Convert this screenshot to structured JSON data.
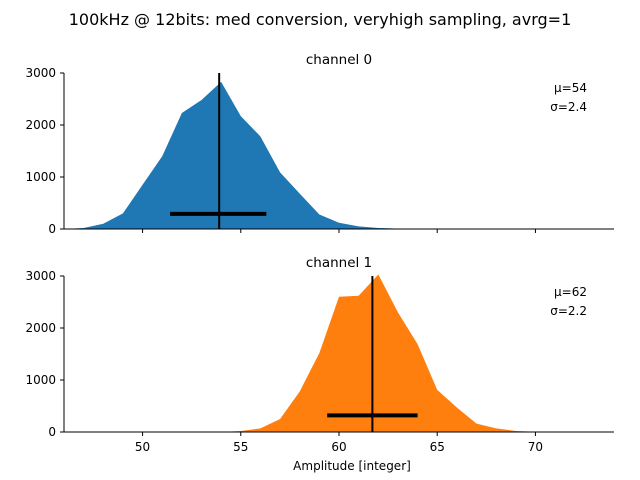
{
  "suptitle": "100kHz @ 12bits: med conversion, veryhigh sampling, avrg=1",
  "xlabel": "Amplitude [integer]",
  "chart_data": [
    {
      "type": "area",
      "title": "channel 0",
      "color": "#1f77b4",
      "x": [
        46,
        47,
        48,
        49,
        50,
        51,
        52,
        53,
        54,
        55,
        56,
        57,
        58,
        59,
        60,
        61,
        62,
        63,
        64,
        65,
        66,
        67,
        68,
        69,
        70,
        71,
        72,
        73,
        74
      ],
      "values": [
        0,
        20,
        100,
        300,
        850,
        1400,
        2230,
        2480,
        2830,
        2170,
        1780,
        1090,
        680,
        280,
        120,
        50,
        20,
        8,
        3,
        1,
        0,
        0,
        0,
        0,
        0,
        0,
        0,
        0,
        0
      ],
      "xlim": [
        46,
        74
      ],
      "ylim": [
        0,
        3000
      ],
      "xticks": [
        50,
        55,
        60,
        65,
        70
      ],
      "yticks": [
        0,
        1000,
        2000,
        3000
      ],
      "mean": 53.9,
      "std_bar": [
        51.4,
        56.3
      ],
      "std_bar_y": 290,
      "annotation": {
        "mu": "μ=54",
        "sigma": "σ=2.4"
      }
    },
    {
      "type": "area",
      "title": "channel 1",
      "color": "#ff7f0e",
      "x": [
        46,
        47,
        48,
        49,
        50,
        51,
        52,
        53,
        54,
        55,
        56,
        57,
        58,
        59,
        60,
        61,
        62,
        63,
        64,
        65,
        66,
        67,
        68,
        69,
        70,
        71,
        72,
        73,
        74
      ],
      "values": [
        0,
        0,
        0,
        0,
        0,
        0,
        0,
        0,
        0,
        20,
        70,
        250,
        780,
        1520,
        2600,
        2620,
        3030,
        2300,
        1690,
        810,
        470,
        160,
        70,
        20,
        5,
        1,
        0,
        0,
        0
      ],
      "xlim": [
        46,
        74
      ],
      "ylim": [
        0,
        3000
      ],
      "xticks": [
        50,
        55,
        60,
        65,
        70
      ],
      "yticks": [
        0,
        1000,
        2000,
        3000
      ],
      "mean": 61.7,
      "std_bar": [
        59.4,
        64.0
      ],
      "std_bar_y": 320,
      "annotation": {
        "mu": "μ=62",
        "sigma": "σ=2.2"
      }
    }
  ]
}
